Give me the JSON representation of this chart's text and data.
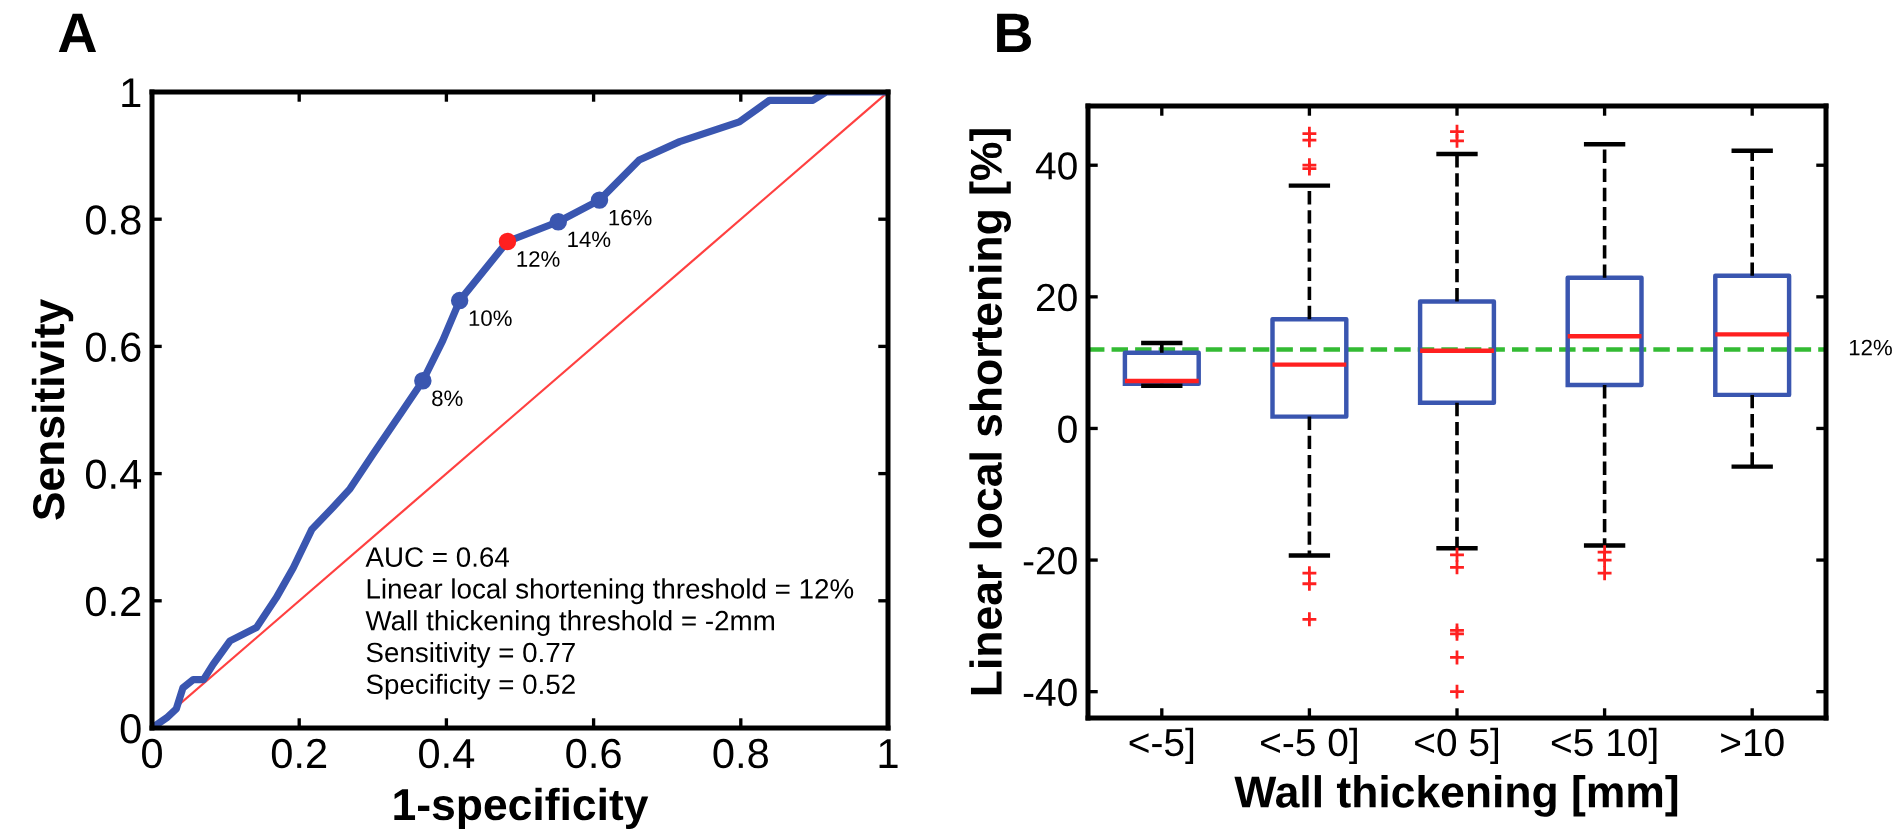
{
  "chart_data": [
    {
      "type": "line",
      "xlabel": "1-specificity",
      "ylabel": "Sensitivity",
      "xlim": [
        0,
        1
      ],
      "ylim": [
        0,
        1
      ],
      "xticks": [
        0,
        0.2,
        0.4,
        0.6,
        0.8,
        1
      ],
      "yticks": [
        0,
        0.2,
        0.4,
        0.6,
        0.8,
        1
      ],
      "grid": false,
      "series": [
        {
          "type": "line",
          "color": "#ff4040",
          "x": [
            0,
            1
          ],
          "values": [
            0,
            1
          ]
        },
        {
          "type": "line",
          "color": "#3a56b0",
          "x": [
            0,
            0.02,
            0.033,
            0.042,
            0.056,
            0.07,
            0.083,
            0.106,
            0.142,
            0.169,
            0.192,
            0.217,
            0.246,
            0.269,
            0.3,
            0.337,
            0.368,
            0.395,
            0.418,
            0.483,
            0.552,
            0.608,
            0.662,
            0.717,
            0.798,
            0.839,
            0.898,
            0.916,
            1
          ],
          "values": [
            0,
            0.016,
            0.03,
            0.063,
            0.076,
            0.076,
            0.1,
            0.137,
            0.158,
            0.205,
            0.252,
            0.312,
            0.347,
            0.376,
            0.43,
            0.493,
            0.546,
            0.609,
            0.672,
            0.765,
            0.796,
            0.83,
            0.893,
            0.922,
            0.953,
            0.987,
            0.987,
            1,
            1
          ]
        },
        {
          "type": "scatter",
          "marker": "circle",
          "x": [
            0.368,
            0.418,
            0.483,
            0.552,
            0.608
          ],
          "values": [
            0.546,
            0.672,
            0.765,
            0.796,
            0.83
          ],
          "colors": [
            "#3a56b0",
            "#3a56b0",
            "#ff2020",
            "#3a56b0",
            "#3a56b0"
          ]
        }
      ],
      "annotations": [
        "A",
        "AUC = 0.64",
        "Linear local shortening threshold = 12%",
        "Wall thickening threshold = -2mm",
        "Sensitivity = 0.77",
        "Specificity = 0.52",
        {
          "text": "8%",
          "x": 0.368,
          "y": 0.546
        },
        {
          "text": "10%",
          "x": 0.418,
          "y": 0.672
        },
        {
          "text": "12%",
          "x": 0.483,
          "y": 0.765
        },
        {
          "text": "14%",
          "x": 0.552,
          "y": 0.796
        },
        {
          "text": "16%",
          "x": 0.608,
          "y": 0.83
        }
      ]
    },
    {
      "type": "box",
      "xlabel": "Wall thickening [mm]",
      "ylabel": "Linear local shortening [%]",
      "ylim": [
        -44,
        49
      ],
      "yticks": [
        -40,
        -20,
        0,
        20,
        40
      ],
      "grid": false,
      "categories": [
        "<-5]",
        "<-5 0]",
        "<0 5]",
        "<5 10]",
        ">10"
      ],
      "series": [
        {
          "color": "#3a56b0",
          "boxes": [
            {
              "low": 6.5,
              "q1": 6.8,
              "median": 7.2,
              "q3": 11.5,
              "high": 13
            },
            {
              "low": -19.3,
              "q1": 1.8,
              "median": 9.7,
              "q3": 16.6,
              "high": 36.9,
              "outliers": [
                44.8,
                43.8,
                40,
                39.5,
                -22,
                -23.6,
                -29
              ]
            },
            {
              "low": -18.2,
              "q1": 3.9,
              "median": 11.8,
              "q3": 19.3,
              "high": 41.7,
              "outliers": [
                45.1,
                43.7,
                -19.2,
                -21.1,
                -30.7,
                -31.2,
                -34.8,
                -40
              ]
            },
            {
              "low": -17.8,
              "q1": 6.6,
              "median": 14,
              "q3": 22.9,
              "high": 43.2,
              "outliers": [
                -18.8,
                -20,
                -22
              ]
            },
            {
              "low": -5.8,
              "q1": 5.1,
              "median": 14.3,
              "q3": 23.2,
              "high": 42.2
            }
          ]
        }
      ],
      "ref_lines": [
        {
          "axis": "y",
          "value": 12,
          "label": "12%",
          "color": "#33bb33",
          "line_style": "dashed"
        }
      ],
      "annotations": [
        "B"
      ]
    }
  ]
}
